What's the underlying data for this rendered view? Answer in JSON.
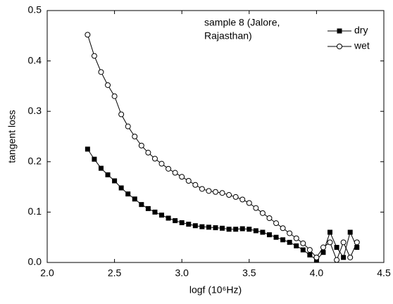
{
  "chart_data": {
    "type": "line",
    "x_label": "logf (10⁶Hz)",
    "y_label": "tangent loss",
    "annotation": [
      "sample 8 (Jalore,",
      "Rajasthan)"
    ],
    "xlim": [
      2.0,
      4.5
    ],
    "ylim": [
      0.0,
      0.5
    ],
    "xticks": [
      {
        "value": 2.0,
        "label": "2.0"
      },
      {
        "value": 2.5,
        "label": "2.5"
      },
      {
        "value": 3.0,
        "label": "3.0"
      },
      {
        "value": 3.5,
        "label": "3.5"
      },
      {
        "value": 4.0,
        "label": "4.0"
      },
      {
        "value": 4.5,
        "label": "4.5"
      }
    ],
    "yticks": [
      {
        "value": 0.0,
        "label": "0.0"
      },
      {
        "value": 0.1,
        "label": "0.1"
      },
      {
        "value": 0.2,
        "label": "0.2"
      },
      {
        "value": 0.3,
        "label": "0.3"
      },
      {
        "value": 0.4,
        "label": "0.4"
      },
      {
        "value": 0.5,
        "label": "0.5"
      }
    ],
    "legend": "upper right",
    "x": [
      2.3,
      2.35,
      2.4,
      2.45,
      2.5,
      2.55,
      2.6,
      2.65,
      2.7,
      2.75,
      2.8,
      2.85,
      2.9,
      2.95,
      3.0,
      3.05,
      3.1,
      3.15,
      3.2,
      3.25,
      3.3,
      3.35,
      3.4,
      3.45,
      3.5,
      3.55,
      3.6,
      3.65,
      3.7,
      3.75,
      3.8,
      3.85,
      3.9,
      3.95,
      4.0,
      4.05,
      4.1,
      4.15,
      4.2,
      4.25,
      4.3
    ],
    "series": [
      {
        "name": "dry",
        "color": "#000000",
        "marker": "square",
        "values": [
          0.225,
          0.205,
          0.187,
          0.174,
          0.162,
          0.148,
          0.136,
          0.126,
          0.115,
          0.107,
          0.1,
          0.094,
          0.088,
          0.083,
          0.079,
          0.076,
          0.073,
          0.071,
          0.07,
          0.069,
          0.068,
          0.066,
          0.066,
          0.067,
          0.066,
          0.063,
          0.06,
          0.055,
          0.05,
          0.045,
          0.04,
          0.033,
          0.025,
          0.015,
          0.005,
          0.02,
          0.06,
          0.03,
          0.01,
          0.06,
          0.03
        ]
      },
      {
        "name": "wet",
        "color": "#000000",
        "marker": "circle",
        "values": [
          0.452,
          0.41,
          0.378,
          0.352,
          0.33,
          0.294,
          0.27,
          0.25,
          0.232,
          0.218,
          0.206,
          0.196,
          0.186,
          0.178,
          0.17,
          0.162,
          0.154,
          0.146,
          0.142,
          0.14,
          0.138,
          0.134,
          0.13,
          0.125,
          0.118,
          0.108,
          0.098,
          0.088,
          0.078,
          0.068,
          0.058,
          0.048,
          0.038,
          0.025,
          0.01,
          0.03,
          0.04,
          0.005,
          0.04,
          0.01,
          0.04
        ]
      }
    ]
  }
}
